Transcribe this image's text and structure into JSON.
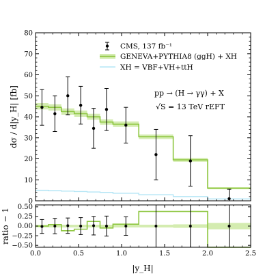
{
  "chart_data": {
    "type": "line",
    "main_panel": {
      "ylabel": "dσ / d|y_H|   [fb]",
      "ylim": [
        0,
        80
      ],
      "yticks": [
        0,
        10,
        20,
        30,
        40,
        50,
        60,
        70,
        80
      ],
      "annotation_line1": "pp → (H → γγ) + X",
      "annotation_line2": "√S = 13 TeV   rEFT"
    },
    "ratio_panel": {
      "ylabel": "ratio − 1",
      "ylim": [
        -0.55,
        0.55
      ],
      "ytick_labels": [
        "0.50",
        "0.25",
        "0.00",
        "−0.25",
        "−0.50"
      ],
      "ytick_values": [
        0.5,
        0.25,
        0.0,
        -0.25,
        -0.5
      ]
    },
    "xlabel": "|y_H|",
    "xlim": [
      0.0,
      2.5
    ],
    "xtick_labels": [
      "0.0",
      "0.5",
      "1.0",
      "1.5",
      "2.0",
      "2.5"
    ],
    "xtick_values": [
      0.0,
      0.5,
      1.0,
      1.5,
      2.0,
      2.5
    ],
    "bin_edges": [
      0.0,
      0.15,
      0.3,
      0.45,
      0.6,
      0.75,
      0.9,
      1.2,
      1.6,
      2.0,
      2.5
    ],
    "legend": {
      "cms": "CMS, 137 fb⁻¹",
      "geneva": "GENEVA+PYTHIA8 (ggH) + XH",
      "xh": "XH = VBF+VH+ttH"
    },
    "series": [
      {
        "name": "Geneva+Pythia8 (ggH) + XH",
        "kind": "histogram-band",
        "color": "#8dc63f",
        "band_color": "#d4ecb0",
        "values": [
          45.0,
          44.5,
          42.5,
          41.5,
          40.0,
          37.5,
          36.5,
          30.5,
          19.5,
          6.0
        ],
        "band_halfwidth": [
          1.5,
          1.5,
          1.5,
          1.5,
          1.4,
          1.3,
          1.3,
          1.1,
          0.9,
          0.5
        ]
      },
      {
        "name": "XH = VBF+VH+ttH",
        "kind": "histogram",
        "color": "#b3e5f5",
        "values": [
          5.0,
          4.8,
          4.6,
          4.4,
          4.2,
          4.0,
          3.6,
          2.9,
          2.0,
          0.9
        ]
      },
      {
        "name": "CMS, 137 fb⁻¹",
        "kind": "points",
        "color": "#000000",
        "x": [
          0.075,
          0.225,
          0.375,
          0.525,
          0.675,
          0.825,
          1.05,
          1.4,
          1.8,
          2.25
        ],
        "y": [
          44.5,
          41.5,
          50.0,
          45.5,
          34.5,
          43.5,
          36.0,
          22.0,
          19.0,
          1.0
        ],
        "yerr": [
          8.5,
          8.5,
          9.0,
          9.0,
          9.5,
          10.0,
          8.5,
          12.0,
          12.0,
          4.5
        ]
      }
    ],
    "ratio_points": {
      "x": [
        0.075,
        0.225,
        0.375,
        0.525,
        0.675,
        0.825,
        1.05,
        1.4,
        1.8,
        2.25
      ],
      "y": [
        -0.01,
        0.0,
        0.01,
        0.0,
        0.01,
        0.0,
        0.0,
        0.0,
        0.0,
        0.0
      ],
      "yerr": [
        0.18,
        0.2,
        0.2,
        0.22,
        0.24,
        0.26,
        0.24,
        0.55,
        0.65,
        0.8
      ]
    },
    "ratio_steps": [
      0.0,
      0.04,
      -0.12,
      -0.08,
      0.12,
      -0.05,
      0.05,
      0.38,
      0.38,
      -0.55
    ]
  }
}
